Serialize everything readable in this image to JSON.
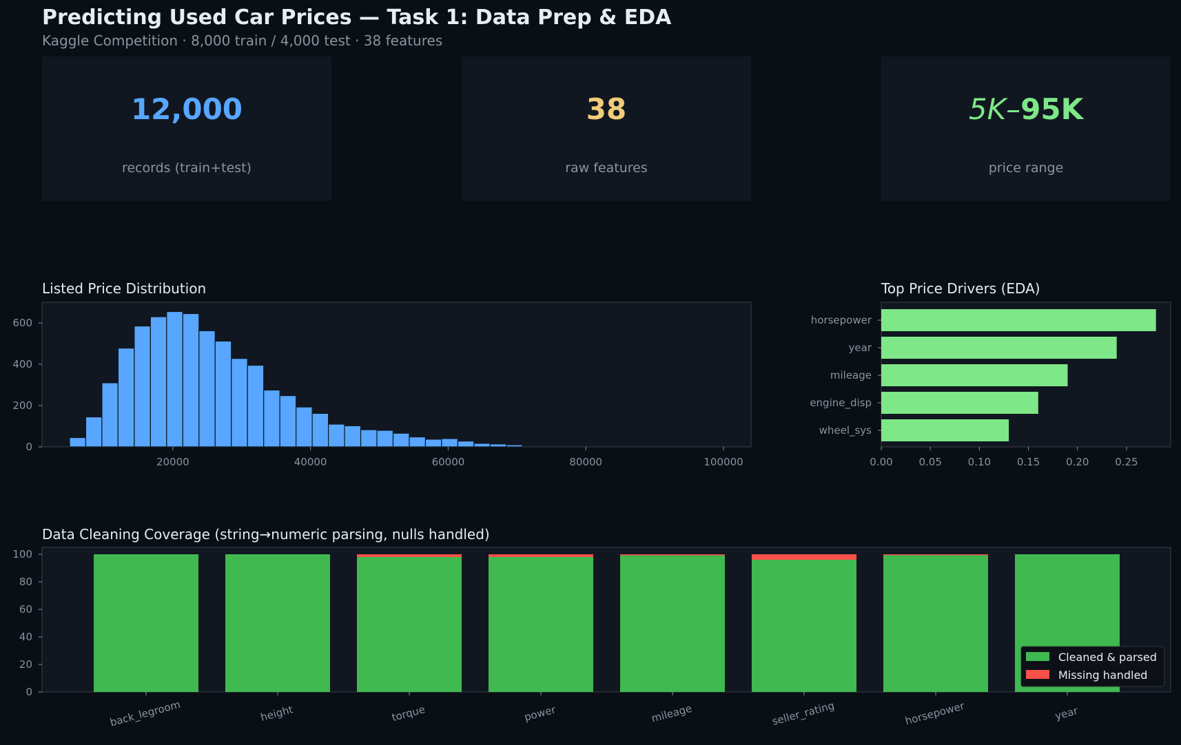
{
  "header": {
    "title": "Predicting Used Car Prices — Task 1: Data Prep & EDA",
    "subtitle": "Kaggle Competition · 8,000 train / 4,000 test · 38 features"
  },
  "kpis": [
    {
      "value": "12,000",
      "label": "records (train+test)",
      "color": "#58a6ff"
    },
    {
      "value": "38",
      "label": "raw features",
      "color": "#f2cc7a"
    },
    {
      "value_italic": "5K",
      "value_dash": "–",
      "value_bold": "95K",
      "label": "price range",
      "color": "#7ee787"
    }
  ],
  "chart_data": [
    {
      "type": "bar",
      "subtype": "histogram",
      "title": "Listed Price Distribution",
      "xlim": [
        1000,
        104000
      ],
      "ylim": [
        0,
        700
      ],
      "xticks": [
        20000,
        40000,
        60000,
        80000,
        100000
      ],
      "yticks": [
        0,
        200,
        400,
        600
      ],
      "bin_width": 2350,
      "bin_start": 5000,
      "color": "#58a6ff",
      "values": [
        45,
        145,
        310,
        478,
        585,
        630,
        655,
        645,
        562,
        512,
        428,
        395,
        275,
        248,
        193,
        162,
        110,
        102,
        83,
        80,
        66,
        48,
        37,
        40,
        28,
        17,
        14,
        10
      ]
    },
    {
      "type": "bar",
      "orientation": "horizontal",
      "title": "Top Price Drivers (EDA)",
      "xlim": [
        0,
        0.295
      ],
      "xticks": [
        "0.00",
        "0.05",
        "0.10",
        "0.15",
        "0.20",
        "0.25"
      ],
      "categories": [
        "horsepower",
        "year",
        "mileage",
        "engine_disp",
        "wheel_sys"
      ],
      "values": [
        0.28,
        0.24,
        0.19,
        0.16,
        0.13
      ],
      "color": "#7ee787"
    },
    {
      "type": "bar",
      "stacked": true,
      "title": "Data Cleaning Coverage (string→numeric parsing, nulls handled)",
      "ylim": [
        0,
        105
      ],
      "yticks": [
        0,
        20,
        40,
        60,
        80,
        100
      ],
      "categories": [
        "back_legroom",
        "height",
        "torque",
        "power",
        "mileage",
        "seller_rating",
        "horsepower",
        "year"
      ],
      "series": [
        {
          "name": "Cleaned & parsed",
          "color": "#3fb950",
          "values": [
            100,
            100,
            98,
            98,
            99.2,
            96,
            99.3,
            100
          ]
        },
        {
          "name": "Missing handled",
          "color": "#f85149",
          "values": [
            0,
            0,
            2,
            2,
            0.8,
            4,
            0.7,
            0
          ]
        }
      ],
      "legend": "bottom-right"
    }
  ]
}
